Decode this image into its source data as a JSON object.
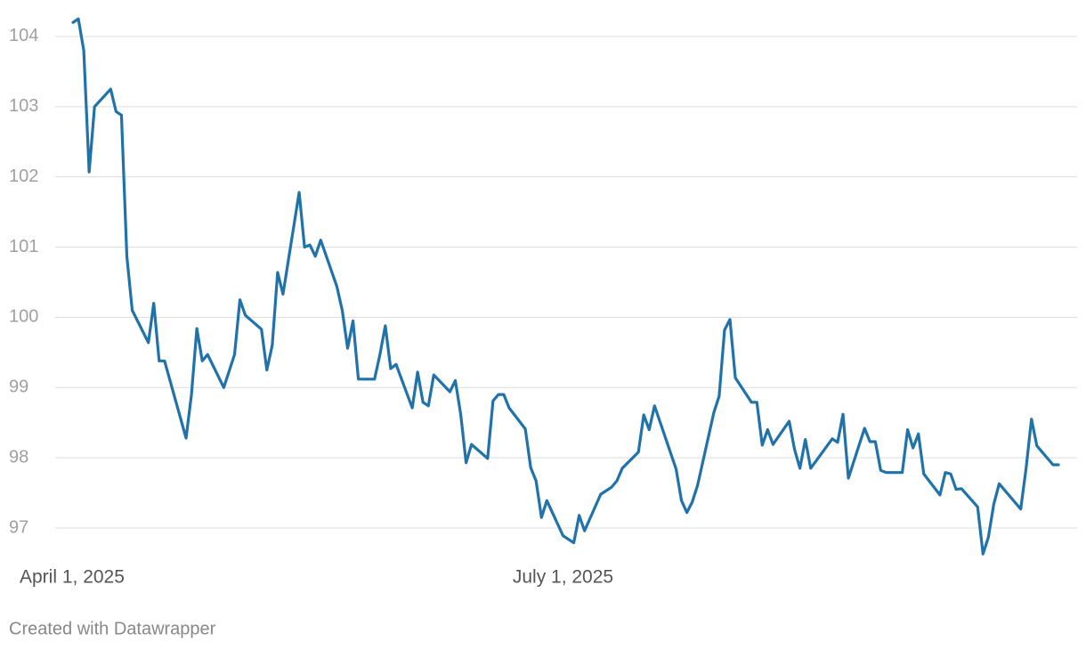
{
  "chart_data": {
    "type": "line",
    "x": [
      "2025-04-01",
      "2025-04-02",
      "2025-04-03",
      "2025-04-04",
      "2025-04-05",
      "2025-04-08",
      "2025-04-09",
      "2025-04-10",
      "2025-04-11",
      "2025-04-12",
      "2025-04-15",
      "2025-04-16",
      "2025-04-17",
      "2025-04-18",
      "2025-04-22",
      "2025-04-23",
      "2025-04-24",
      "2025-04-25",
      "2025-04-26",
      "2025-04-29",
      "2025-05-01",
      "2025-05-02",
      "2025-05-03",
      "2025-05-06",
      "2025-05-07",
      "2025-05-08",
      "2025-05-09",
      "2025-05-10",
      "2025-05-13",
      "2025-05-14",
      "2025-05-15",
      "2025-05-16",
      "2025-05-17",
      "2025-05-20",
      "2025-05-21",
      "2025-05-22",
      "2025-05-23",
      "2025-05-24",
      "2025-05-27",
      "2025-05-28",
      "2025-05-29",
      "2025-05-30",
      "2025-05-31",
      "2025-06-03",
      "2025-06-04",
      "2025-06-05",
      "2025-06-06",
      "2025-06-07",
      "2025-06-10",
      "2025-06-11",
      "2025-06-12",
      "2025-06-13",
      "2025-06-14",
      "2025-06-17",
      "2025-06-18",
      "2025-06-19",
      "2025-06-20",
      "2025-06-21",
      "2025-06-24",
      "2025-06-25",
      "2025-06-26",
      "2025-06-27",
      "2025-06-28",
      "2025-07-01",
      "2025-07-03",
      "2025-07-04",
      "2025-07-05",
      "2025-07-08",
      "2025-07-10",
      "2025-07-11",
      "2025-07-12",
      "2025-07-15",
      "2025-07-16",
      "2025-07-17",
      "2025-07-18",
      "2025-07-22",
      "2025-07-23",
      "2025-07-24",
      "2025-07-25",
      "2025-07-26",
      "2025-07-29",
      "2025-07-30",
      "2025-07-31",
      "2025-08-01",
      "2025-08-02",
      "2025-08-05",
      "2025-08-06",
      "2025-08-07",
      "2025-08-08",
      "2025-08-09",
      "2025-08-12",
      "2025-08-13",
      "2025-08-14",
      "2025-08-15",
      "2025-08-16",
      "2025-08-20",
      "2025-08-21",
      "2025-08-22",
      "2025-08-23",
      "2025-08-26",
      "2025-08-27",
      "2025-08-28",
      "2025-08-29",
      "2025-08-30",
      "2025-09-02",
      "2025-09-03",
      "2025-09-04",
      "2025-09-05",
      "2025-09-06",
      "2025-09-09",
      "2025-09-10",
      "2025-09-11",
      "2025-09-12",
      "2025-09-13",
      "2025-09-16",
      "2025-09-17",
      "2025-09-18",
      "2025-09-19",
      "2025-09-20",
      "2025-09-24",
      "2025-09-25",
      "2025-09-26",
      "2025-09-27",
      "2025-09-30",
      "2025-10-01"
    ],
    "values": [
      104.2,
      104.25,
      103.8,
      102.07,
      103.0,
      103.25,
      102.93,
      102.88,
      100.87,
      100.1,
      99.64,
      100.2,
      99.38,
      99.38,
      98.28,
      98.9,
      99.84,
      99.38,
      99.47,
      99.0,
      99.47,
      100.25,
      100.03,
      99.83,
      99.25,
      99.6,
      100.64,
      100.33,
      101.78,
      101.0,
      101.03,
      100.87,
      101.1,
      100.44,
      100.1,
      99.56,
      99.95,
      99.12,
      99.12,
      99.47,
      99.88,
      99.27,
      99.33,
      98.71,
      99.22,
      98.79,
      98.74,
      99.18,
      98.94,
      99.1,
      98.62,
      97.93,
      98.19,
      97.99,
      98.81,
      98.9,
      98.9,
      98.71,
      98.41,
      97.86,
      97.67,
      97.15,
      97.39,
      96.89,
      96.79,
      97.18,
      96.96,
      97.48,
      97.58,
      97.67,
      97.85,
      98.08,
      98.61,
      98.4,
      98.74,
      97.84,
      97.39,
      97.22,
      97.37,
      97.61,
      98.64,
      98.88,
      99.82,
      99.97,
      99.14,
      98.79,
      98.79,
      98.18,
      98.4,
      98.19,
      98.52,
      98.12,
      97.85,
      98.26,
      97.85,
      98.27,
      98.22,
      98.62,
      97.71,
      98.42,
      98.23,
      98.23,
      97.82,
      97.79,
      97.79,
      98.4,
      98.14,
      98.34,
      97.77,
      97.47,
      97.79,
      97.77,
      97.55,
      97.56,
      97.3,
      96.63,
      96.87,
      97.34,
      97.63,
      97.27,
      97.85,
      98.55,
      98.17,
      97.9,
      97.9
    ],
    "color": "#1f72aa",
    "xlim": [
      "2025-04-01",
      "2025-10-01"
    ],
    "xticks": [
      {
        "value": "2025-04-01",
        "label": "April 1, 2025"
      },
      {
        "value": "2025-07-01",
        "label": "July 1, 2025"
      }
    ],
    "ylim": [
      96.5,
      104.3
    ],
    "yticks": [
      97,
      98,
      99,
      100,
      101,
      102,
      103,
      104
    ],
    "grid": true,
    "footer": "Created with Datawrapper"
  }
}
